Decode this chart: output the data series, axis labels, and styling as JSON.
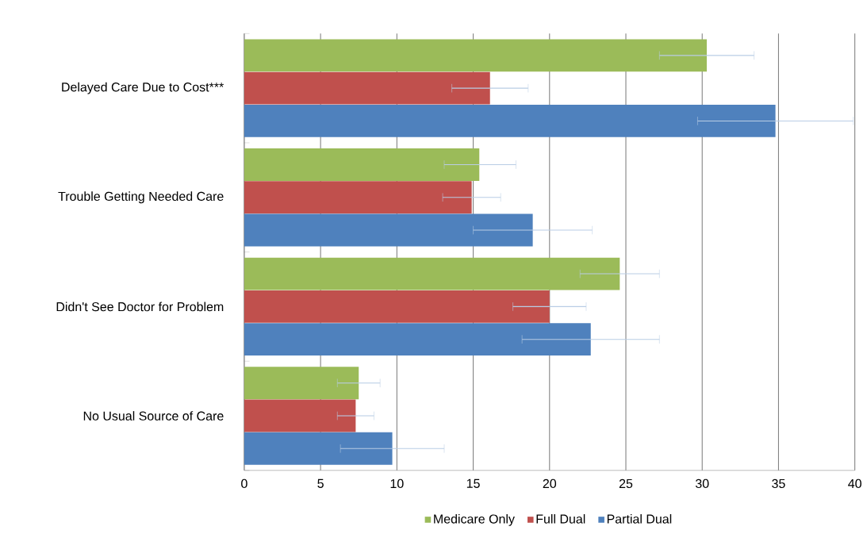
{
  "chart_data": {
    "type": "bar",
    "orientation": "horizontal",
    "categories": [
      "Delayed Care Due to Cost***",
      "Trouble Getting Needed Care",
      "Didn't See Doctor for Problem",
      "No Usual Source of Care"
    ],
    "series": [
      {
        "name": "Medicare Only",
        "color": "#9bbb59",
        "values": [
          30.3,
          15.4,
          24.6,
          7.5
        ],
        "errors": [
          [
            27.2,
            33.4
          ],
          [
            13.1,
            17.8
          ],
          [
            22.0,
            27.2
          ],
          [
            6.1,
            8.9
          ]
        ]
      },
      {
        "name": "Full Dual",
        "color": "#c0504d",
        "values": [
          16.1,
          14.9,
          20.0,
          7.3
        ],
        "errors": [
          [
            13.6,
            18.6
          ],
          [
            13.0,
            16.8
          ],
          [
            17.6,
            22.4
          ],
          [
            6.1,
            8.5
          ]
        ]
      },
      {
        "name": "Partial Dual",
        "color": "#4f81bd",
        "values": [
          34.8,
          18.9,
          22.7,
          9.7
        ],
        "errors": [
          [
            29.7,
            39.9
          ],
          [
            15.0,
            22.8
          ],
          [
            18.2,
            27.2
          ],
          [
            6.3,
            13.1
          ]
        ]
      }
    ],
    "xlim": [
      0,
      40
    ],
    "xticks": [
      0,
      5,
      10,
      15,
      20,
      25,
      30,
      35,
      40
    ],
    "grid": "x",
    "legend": "bottom"
  }
}
